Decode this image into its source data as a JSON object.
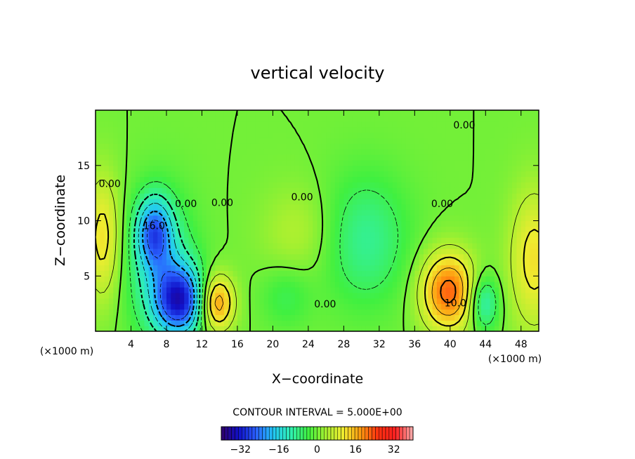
{
  "chart_data": {
    "type": "heatmap",
    "title": "vertical velocity",
    "xlabel": "X−coordinate",
    "ylabel": "Z−coordinate",
    "x_unit_left": "(×1000 m)",
    "x_unit_right": "(×1000 m)",
    "xlim": [
      0,
      50
    ],
    "ylim": [
      0,
      20
    ],
    "x_ticks": [
      4,
      8,
      12,
      16,
      20,
      24,
      28,
      32,
      36,
      40,
      44,
      48
    ],
    "y_ticks": [
      5,
      10,
      15
    ],
    "contour_interval_text": "CONTOUR INTERVAL = 5.000E+00",
    "contour_labels": [
      {
        "text": "0.00",
        "x": 1.6,
        "z": 13.3
      },
      {
        "text": "16.0",
        "x": 6.6,
        "z": 9.5
      },
      {
        "text": "0.00",
        "x": 10.2,
        "z": 11.5
      },
      {
        "text": "0.00",
        "x": 14.3,
        "z": 11.6
      },
      {
        "text": "0.00",
        "x": 23.3,
        "z": 12.1
      },
      {
        "text": "0.00",
        "x": 25.9,
        "z": 2.4
      },
      {
        "text": "0.00",
        "x": 39.1,
        "z": 11.5
      },
      {
        "text": "10.0",
        "x": 40.6,
        "z": 2.5
      },
      {
        "text": "0.00",
        "x": 41.6,
        "z": 18.6
      }
    ],
    "features": [
      {
        "x": 9.6,
        "z": 2.8,
        "value": -28,
        "sx": 2.0,
        "sz": 2.2
      },
      {
        "x": 6.6,
        "z": 9.0,
        "value": -20,
        "sx": 1.4,
        "sz": 2.2
      },
      {
        "x": 7.4,
        "z": 5.8,
        "value": -12,
        "sx": 2.6,
        "sz": 4.5
      },
      {
        "x": 13.6,
        "z": 2.6,
        "value": 20,
        "sx": 1.4,
        "sz": 1.8
      },
      {
        "x": 21.5,
        "z": 3.2,
        "value": -5,
        "sx": 2.0,
        "sz": 2.0
      },
      {
        "x": 30.4,
        "z": 8.3,
        "value": -9,
        "sx": 3.5,
        "sz": 4.2
      },
      {
        "x": 23.0,
        "z": 9.0,
        "value": 5,
        "sx": 3.0,
        "sz": 3.0
      },
      {
        "x": 39.8,
        "z": 3.6,
        "value": 22,
        "sx": 2.2,
        "sz": 2.5
      },
      {
        "x": 43.8,
        "z": 2.6,
        "value": -13,
        "sx": 1.2,
        "sz": 1.8
      },
      {
        "x": 49.5,
        "z": 6.5,
        "value": 12,
        "sx": 2.0,
        "sz": 4.5
      },
      {
        "x": 0.8,
        "z": 8.5,
        "value": 12,
        "sx": 1.4,
        "sz": 4.0
      }
    ],
    "colorbar": {
      "vmin": -40,
      "vmax": 40,
      "tick_values": [
        -32,
        -16,
        0,
        16,
        32
      ],
      "tick_labels": [
        "−32",
        "−16",
        "0",
        "16",
        "32"
      ]
    },
    "colormap": [
      "#30006a",
      "#1010c8",
      "#2a60ff",
      "#22c8f4",
      "#30f0b0",
      "#40f040",
      "#a6f030",
      "#f0ec30",
      "#ff9a10",
      "#ff3010",
      "#ff2020",
      "#ffb0b0"
    ],
    "grid": false,
    "legend": "colorbar-bottom"
  }
}
